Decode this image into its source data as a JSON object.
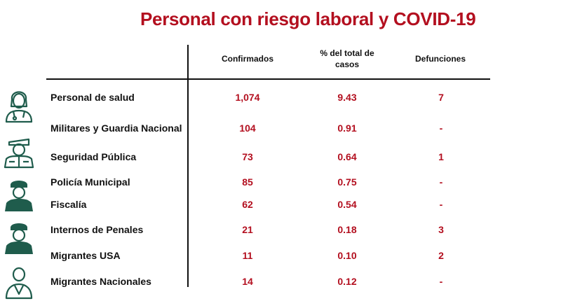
{
  "title": "Personal con riesgo laboral y COVID-19",
  "headers": {
    "confirmados": "Confirmados",
    "pct": "% del total de casos",
    "defunciones": "Defunciones"
  },
  "rows": [
    {
      "label": "Personal de salud",
      "confirmados": "1,074",
      "pct": "9.43",
      "defunciones": "7"
    },
    {
      "label": "Militares y Guardia Nacional",
      "confirmados": "104",
      "pct": "0.91",
      "defunciones": "-"
    },
    {
      "label": "Seguridad Pública",
      "confirmados": "73",
      "pct": "0.64",
      "defunciones": "1"
    },
    {
      "label": "Policía Municipal",
      "confirmados": "85",
      "pct": "0.75",
      "defunciones": "-"
    },
    {
      "label": "Fiscalía",
      "confirmados": "62",
      "pct": "0.54",
      "defunciones": "-"
    },
    {
      "label": "Internos de Penales",
      "confirmados": "21",
      "pct": "0.18",
      "defunciones": "3"
    },
    {
      "label": "Migrantes USA",
      "confirmados": "11",
      "pct": "0.10",
      "defunciones": "2"
    },
    {
      "label": "Migrantes Nacionales",
      "confirmados": "14",
      "pct": "0.12",
      "defunciones": "-"
    }
  ],
  "icons": [
    "health-worker-icon",
    "military-officer-icon",
    "police-officer-icon",
    "police-officer-icon",
    "migrant-icon"
  ],
  "colors": {
    "accent": "#b30f1f",
    "icon": "#1f5c4c"
  }
}
